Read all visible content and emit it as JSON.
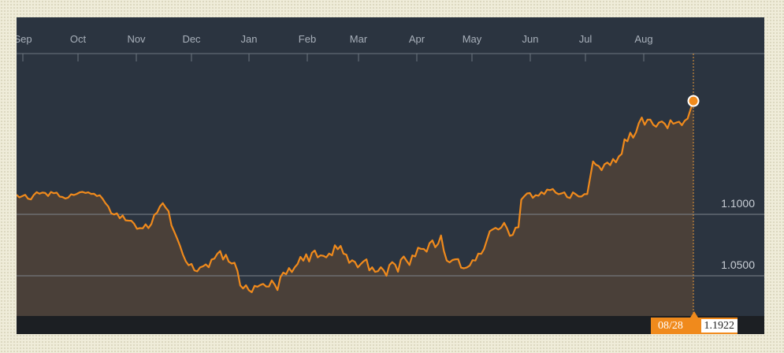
{
  "chart_data": {
    "type": "area",
    "title": "",
    "xlabel": "",
    "ylabel": "",
    "months": [
      "Sep",
      "Oct",
      "Nov",
      "Dec",
      "Jan",
      "Feb",
      "Mar",
      "Apr",
      "May",
      "Jun",
      "Jul",
      "Aug"
    ],
    "y_ticks": [
      "1.1000",
      "1.0500"
    ],
    "y_tick_values": [
      1.1,
      1.05
    ],
    "ylim": [
      1.004,
      1.2
    ],
    "grid": "horizontal",
    "line_color": "#f08a1c",
    "fill_color": "#4a4039",
    "background_color": "#2b3440",
    "series": [
      {
        "values": [
          1.1159,
          1.1138,
          1.1148,
          1.1159,
          1.1127,
          1.1121,
          1.1157,
          1.118,
          1.1168,
          1.1177,
          1.1174,
          1.1149,
          1.1182,
          1.1172,
          1.1176,
          1.1145,
          1.1141,
          1.1129,
          1.1136,
          1.1163,
          1.1157,
          1.1166,
          1.1179,
          1.1183,
          1.1174,
          1.1179,
          1.1166,
          1.1167,
          1.1149,
          1.1155,
          1.1127,
          1.1091,
          1.1063,
          1.1009,
          1.0999,
          1.1008,
          1.0968,
          1.0991,
          1.0951,
          1.0949,
          1.0948,
          1.0924,
          1.0882,
          1.0888,
          1.0886,
          1.0919,
          1.0888,
          1.0921,
          1.0994,
          1.1014,
          1.1064,
          1.1091,
          1.1054,
          1.1026,
          1.091,
          1.0858,
          1.0803,
          1.0743,
          1.0673,
          1.0618,
          1.0586,
          1.0596,
          1.0544,
          1.0536,
          1.0568,
          1.0577,
          1.0592,
          1.0569,
          1.0632,
          1.064,
          1.0679,
          1.0702,
          1.0632,
          1.0671,
          1.0615,
          1.06,
          1.0606,
          1.0541,
          1.0422,
          1.0397,
          1.0423,
          1.0383,
          1.0366,
          1.0418,
          1.0411,
          1.0425,
          1.0434,
          1.0413,
          1.0412,
          1.0462,
          1.0429,
          1.0384,
          1.0489,
          1.0526,
          1.0512,
          1.0563,
          1.053,
          1.0569,
          1.0596,
          1.0654,
          1.0623,
          1.0675,
          1.0616,
          1.0687,
          1.0706,
          1.065,
          1.0666,
          1.0662,
          1.065,
          1.0681,
          1.0666,
          1.0748,
          1.0716,
          1.0743,
          1.068,
          1.0672,
          1.0605,
          1.0626,
          1.0612,
          1.0568,
          1.0595,
          1.0618,
          1.0634,
          1.0544,
          1.0569,
          1.0532,
          1.0537,
          1.057,
          1.0544,
          1.05,
          1.0588,
          1.0611,
          1.0591,
          1.0533,
          1.0631,
          1.0657,
          1.0622,
          1.0588,
          1.0666,
          1.0657,
          1.0728,
          1.0719,
          1.0718,
          1.0696,
          1.0765,
          1.0788,
          1.0732,
          1.0761,
          1.0828,
          1.0703,
          1.0624,
          1.0609,
          1.0628,
          1.0634,
          1.0635,
          1.0566,
          1.0561,
          1.0568,
          1.0583,
          1.0627,
          1.0624,
          1.068,
          1.0678,
          1.0717,
          1.079,
          1.0863,
          1.0877,
          1.089,
          1.0876,
          1.0892,
          1.0931,
          1.0887,
          1.0825,
          1.0833,
          1.0891,
          1.0895,
          1.112,
          1.1147,
          1.117,
          1.1173,
          1.1134,
          1.1156,
          1.1151,
          1.1181,
          1.1164,
          1.1201,
          1.1197,
          1.1206,
          1.1176,
          1.1164,
          1.117,
          1.1179,
          1.114,
          1.1133,
          1.1178,
          1.1163,
          1.1145,
          1.1145,
          1.1164,
          1.1165,
          1.13,
          1.143,
          1.1404,
          1.1393,
          1.1359,
          1.1407,
          1.1421,
          1.14,
          1.145,
          1.1423,
          1.1471,
          1.1491,
          1.161,
          1.1594,
          1.1664,
          1.1623,
          1.1667,
          1.1743,
          1.1788,
          1.1728,
          1.177,
          1.177,
          1.1729,
          1.1712,
          1.1747,
          1.1756,
          1.1737,
          1.17,
          1.1766,
          1.1737,
          1.1746,
          1.1753,
          1.1725,
          1.1762,
          1.1779,
          1.1854,
          1.1922
        ]
      }
    ],
    "last_point": {
      "date": "08/28",
      "value": "1.1922"
    }
  }
}
